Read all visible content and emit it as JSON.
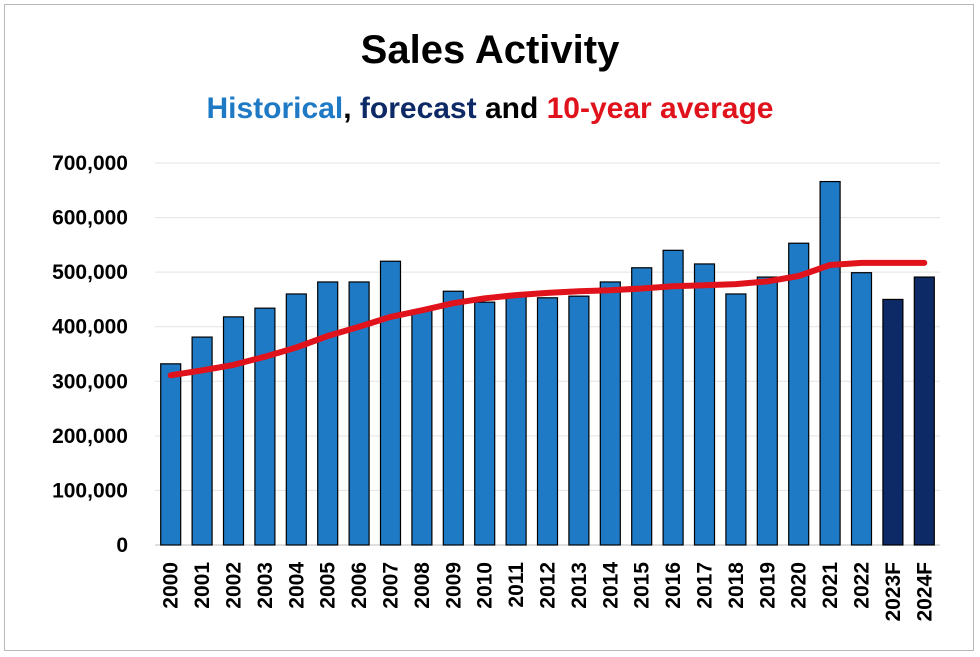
{
  "chart_data": {
    "type": "bar",
    "title": "Sales Activity",
    "subtitle_parts": [
      {
        "text": "Historical",
        "color": "#1f7ac6"
      },
      {
        "text": ", ",
        "color": "#000000"
      },
      {
        "text": "forecast",
        "color": "#0d2a66"
      },
      {
        "text": " and ",
        "color": "#000000"
      },
      {
        "text": "10-year average",
        "color": "#e0121b"
      }
    ],
    "categories": [
      "2000",
      "2001",
      "2002",
      "2003",
      "2004",
      "2005",
      "2006",
      "2007",
      "2008",
      "2009",
      "2010",
      "2011",
      "2012",
      "2013",
      "2014",
      "2015",
      "2016",
      "2017",
      "2018",
      "2019",
      "2020",
      "2021",
      "2022",
      "2023F",
      "2024F"
    ],
    "series": [
      {
        "kind": "bar",
        "values": [
          332000,
          381000,
          418000,
          434000,
          460000,
          482000,
          482000,
          520000,
          430000,
          465000,
          445000,
          455000,
          453000,
          456000,
          482000,
          508000,
          540000,
          515000,
          460000,
          491000,
          553000,
          666000,
          499000,
          450000,
          491000
        ],
        "bar_types": [
          "historical",
          "historical",
          "historical",
          "historical",
          "historical",
          "historical",
          "historical",
          "historical",
          "historical",
          "historical",
          "historical",
          "historical",
          "historical",
          "historical",
          "historical",
          "historical",
          "historical",
          "historical",
          "historical",
          "historical",
          "historical",
          "historical",
          "historical",
          "forecast",
          "forecast"
        ]
      },
      {
        "kind": "line",
        "values": [
          311000,
          320000,
          330000,
          345000,
          362000,
          383000,
          400000,
          418000,
          430000,
          443000,
          452000,
          458000,
          462000,
          465000,
          467000,
          470000,
          474000,
          476000,
          478000,
          483000,
          493000,
          513000,
          517000,
          517000,
          517000
        ]
      }
    ],
    "colors": {
      "historical": "#1f7ac6",
      "forecast": "#0d2a66",
      "line": "#e0121b"
    },
    "y_ticks": [
      "0",
      "100,000",
      "200,000",
      "300,000",
      "400,000",
      "500,000",
      "600,000",
      "700,000"
    ],
    "ylim": [
      0,
      700000
    ],
    "grid": true,
    "legend": "none"
  }
}
